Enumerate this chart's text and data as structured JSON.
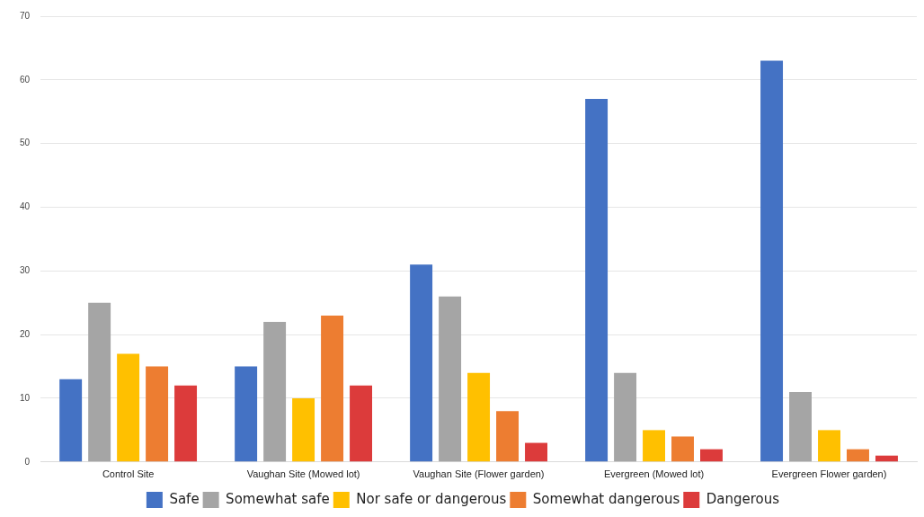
{
  "chart_data": {
    "type": "bar",
    "categories": [
      "Control Site",
      "Vaughan Site (Mowed lot)",
      "Vaughan Site (Flower garden)",
      "Evergreen (Mowed lot)",
      "Evergreen Flower garden)"
    ],
    "series": [
      {
        "name": "Safe",
        "color": "#4472c4",
        "values": [
          13,
          15,
          31,
          57,
          63
        ]
      },
      {
        "name": "Somewhat safe",
        "color": "#a5a5a5",
        "values": [
          25,
          22,
          26,
          14,
          11
        ]
      },
      {
        "name": "Nor safe or dangerous",
        "color": "#ffc000",
        "values": [
          17,
          10,
          14,
          5,
          5
        ]
      },
      {
        "name": "Somewhat dangerous",
        "color": "#ed7d31",
        "values": [
          15,
          23,
          8,
          4,
          2
        ]
      },
      {
        "name": "Dangerous",
        "color": "#dc3b3b",
        "values": [
          12,
          12,
          3,
          2,
          1
        ]
      }
    ],
    "ylim": [
      0,
      70
    ],
    "yticks": [
      0,
      10,
      20,
      30,
      40,
      50,
      60,
      70
    ],
    "grid": "y",
    "legend": "bottom"
  }
}
